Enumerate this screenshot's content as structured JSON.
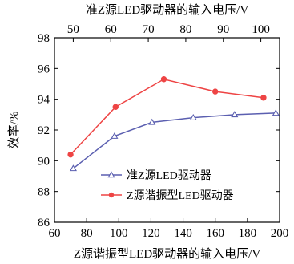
{
  "chart_data": {
    "type": "line",
    "xlabel_bottom": "Z源谐振型LED驱动器的输入电压/V",
    "xlabel_top": "准Z源LED驱动器的输入电压/V",
    "ylabel": "效率/%",
    "xlim_bottom": [
      60,
      200
    ],
    "xticks_bottom": [
      "60",
      "80",
      "100",
      "120",
      "140",
      "160",
      "180",
      "200"
    ],
    "xlim_top": [
      45,
      105
    ],
    "xticks_top": [
      "50",
      "60",
      "70",
      "80",
      "90",
      "100"
    ],
    "ylim": [
      86,
      98
    ],
    "yticks": [
      "86",
      "88",
      "90",
      "92",
      "94",
      "96",
      "98"
    ],
    "grid": false,
    "legend_position": "lower-right",
    "series": [
      {
        "name": "准Z源LED驱动器",
        "axis": "top",
        "color": "#5b5fb0",
        "marker": "open-triangle",
        "x": [
          50,
          61,
          71,
          82,
          93,
          104
        ],
        "y": [
          89.5,
          91.6,
          92.5,
          92.8,
          93.0,
          93.1
        ]
      },
      {
        "name": "Z源谐振型LED驱动器",
        "axis": "bottom",
        "color": "#ee4444",
        "marker": "filled-circle",
        "x": [
          70,
          98,
          128,
          160,
          190
        ],
        "y": [
          90.4,
          93.5,
          95.3,
          94.5,
          94.1
        ]
      }
    ]
  }
}
